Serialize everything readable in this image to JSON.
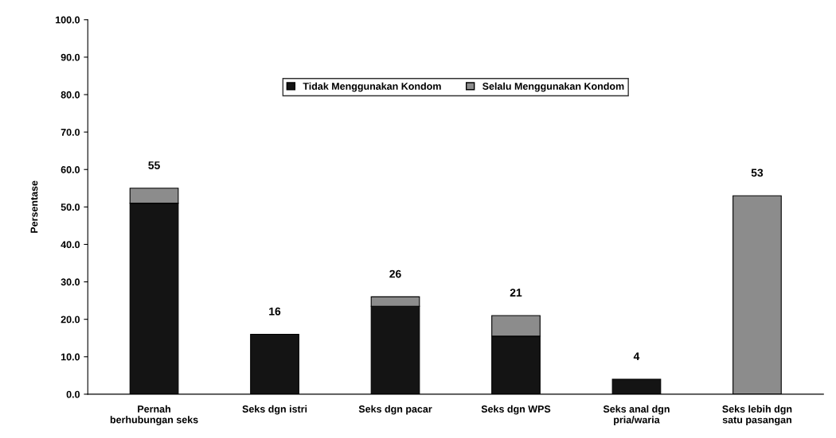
{
  "chart_data": {
    "type": "bar",
    "stacked": true,
    "ylabel": "Persentase",
    "categories": [
      "Pernah\nberhubungan seks",
      "Seks dgn istri",
      "Seks dgn pacar",
      "Seks dgn WPS",
      "Seks anal dgn\npria/waria",
      "Seks lebih dgn\nsatu pasangan"
    ],
    "series": [
      {
        "name": "Tidak Menggunakan Kondom",
        "color": "#141414",
        "values": [
          51,
          16,
          23.5,
          15.5,
          4,
          0
        ]
      },
      {
        "name": "Selalu Menggunakan Kondom",
        "color": "#8c8c8c",
        "values": [
          4,
          0,
          2.5,
          5.5,
          0,
          53
        ]
      }
    ],
    "totals": [
      "55",
      "16",
      "26",
      "21",
      "4",
      "53"
    ],
    "ylim": [
      0,
      100
    ],
    "yticks": [
      {
        "value": 0,
        "label": "0.0"
      },
      {
        "value": 10,
        "label": "10.0"
      },
      {
        "value": 20,
        "label": "20.0"
      },
      {
        "value": 30,
        "label": "30.0"
      },
      {
        "value": 40,
        "label": "40.0"
      },
      {
        "value": 50,
        "label": "50.0"
      },
      {
        "value": 60,
        "label": "60.0"
      },
      {
        "value": 70,
        "label": "70.0"
      },
      {
        "value": 80,
        "label": "80.0"
      },
      {
        "value": 90,
        "label": "90.0"
      },
      {
        "value": 100,
        "label": "100.0"
      }
    ],
    "grid": false,
    "legend": "top"
  }
}
